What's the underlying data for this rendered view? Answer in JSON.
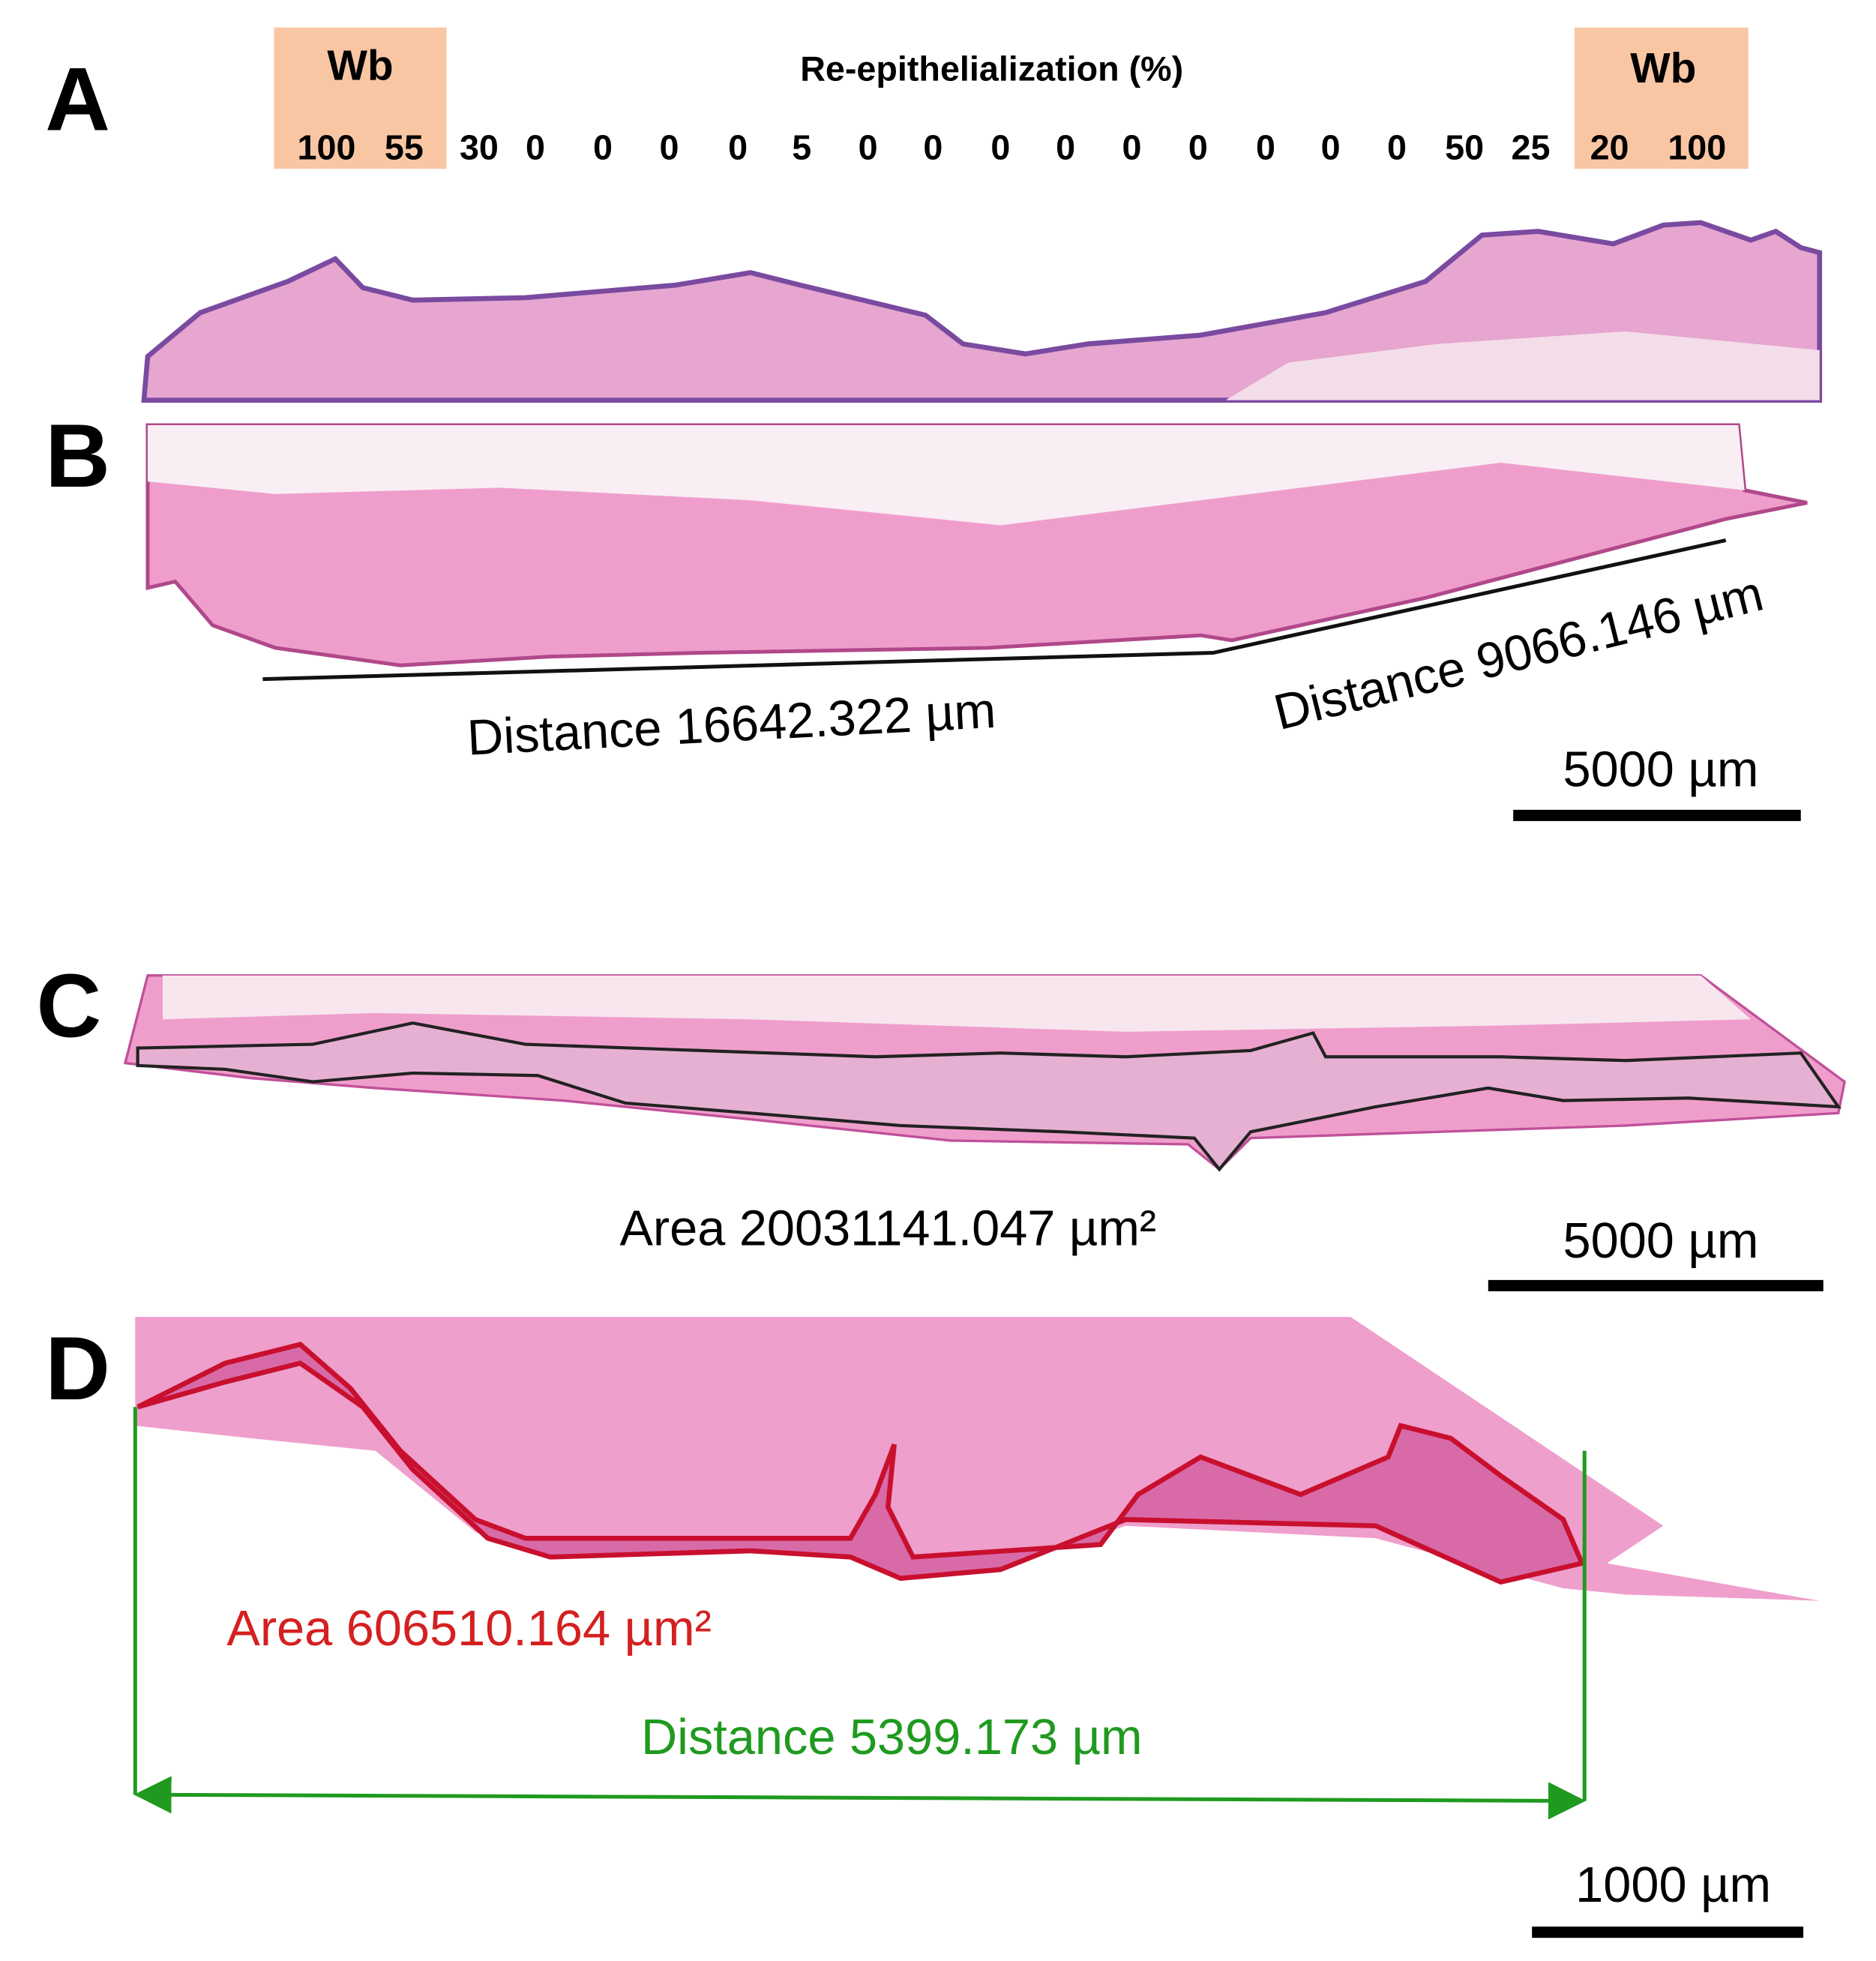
{
  "panels": [
    {
      "label": "A",
      "title": "Re-epithelialization (%)",
      "left_wound_border": {
        "label": "Wb",
        "values": [
          100,
          55
        ]
      },
      "values": [
        30,
        0,
        0,
        0,
        0,
        5,
        0,
        0,
        0,
        0,
        0,
        0,
        0,
        0,
        0,
        50,
        25
      ],
      "right_wound_border": {
        "label": "Wb",
        "values": [
          20,
          100
        ]
      }
    },
    {
      "label": "B",
      "annotations": [
        "Distance 16642.322 µm",
        "Distance 9066.146 µm"
      ],
      "scale_bar": "5000 µm"
    },
    {
      "label": "C",
      "annotations": [
        "Area 20031141.047 µm²"
      ],
      "scale_bar": "5000 µm"
    },
    {
      "label": "D",
      "annotations": [
        "Area 606510.164 µm²",
        "Distance 5399.173 µm"
      ],
      "scale_bar": "1000 µm"
    }
  ]
}
